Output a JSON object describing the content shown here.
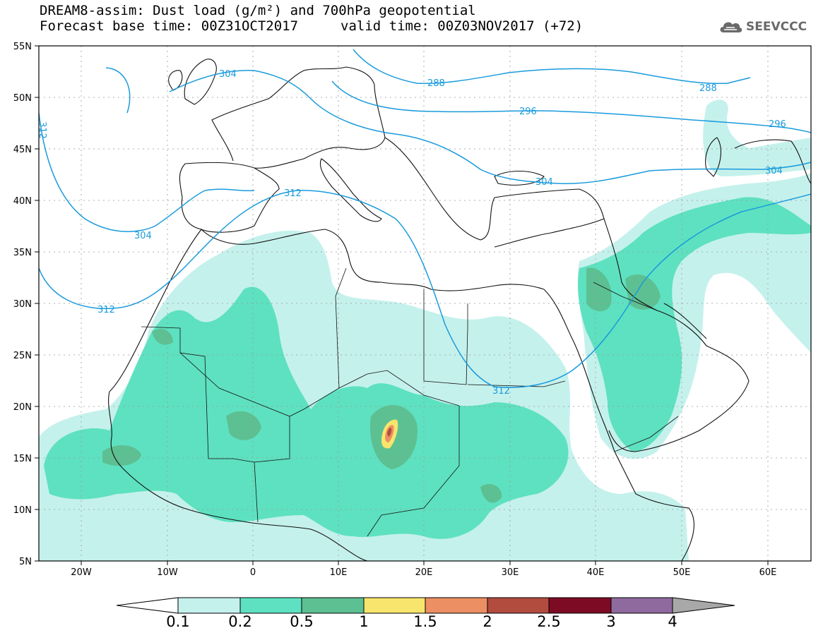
{
  "title": {
    "line1": "DREAM8-assim: Dust load (g/m²) and 700hPa geopotential",
    "base_time": "Forecast base time: 00Z31OCT2017",
    "valid_time": "valid time: 00Z03NOV2017 (+72)"
  },
  "logo": {
    "text": "SEEVCCC",
    "icon": "cloud-icon"
  },
  "map": {
    "lat_labels": [
      "55N",
      "50N",
      "45N",
      "40N",
      "35N",
      "30N",
      "25N",
      "20N",
      "15N",
      "10N",
      "5N"
    ],
    "lon_labels": [
      "20W",
      "10W",
      "0",
      "10E",
      "20E",
      "30E",
      "40E",
      "50E",
      "60E"
    ],
    "extent": {
      "lon_min": -25,
      "lon_max": 65,
      "lat_min": 5,
      "lat_max": 55
    },
    "contour_labels": [
      "304",
      "288",
      "296",
      "288",
      "296",
      "304",
      "304",
      "312",
      "304",
      "312",
      "312",
      "312"
    ],
    "contour_color": "#1a9bdc"
  },
  "colorbar": {
    "levels": [
      "0.1",
      "0.2",
      "0.5",
      "1",
      "1.5",
      "2",
      "2.5",
      "3",
      "4"
    ],
    "colors": [
      "#c5f1ec",
      "#5ee1c0",
      "#5dc092",
      "#f7e56d",
      "#ec8f63",
      "#b24c3f",
      "#7d0b24",
      "#8f6a9e"
    ],
    "under_color": "#ffffff",
    "over_color": "#a8a8a8"
  }
}
